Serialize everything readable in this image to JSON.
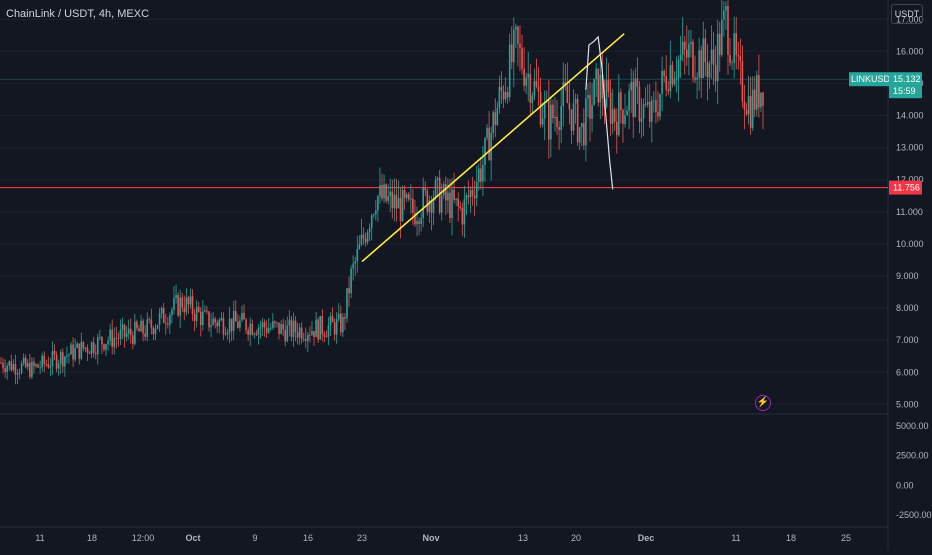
{
  "header": {
    "title": "ChainLink / USDT, 4h, MEXC",
    "currency": "USDT"
  },
  "chart_data": {
    "type": "candlestick",
    "title": "ChainLink / USDT, 4h, MEXC",
    "symbol": "LINKUSDT",
    "ylim": [
      4.7,
      17.6
    ],
    "y_ticks": [
      "17.000",
      "16.000",
      "15.000",
      "14.000",
      "13.000",
      "12.000",
      "11.000",
      "10.000",
      "9.000",
      "8.000",
      "7.000",
      "6.000",
      "5.000"
    ],
    "x_ticks": [
      "11",
      "18",
      "12:00",
      "Oct",
      "9",
      "16",
      "23",
      "Nov",
      "13",
      "20",
      "Dec",
      "11",
      "18",
      "25"
    ],
    "x_ticks_bold": [
      "Oct",
      "Nov",
      "Dec"
    ],
    "volume_pane": {
      "y_ticks": [
        "5000.00",
        "2500.00",
        "0.00",
        "-2500.00"
      ],
      "ylim": [
        -3500,
        6000
      ]
    },
    "price_anchors": [
      {
        "t": 0,
        "p": 6.3
      },
      {
        "t": 15,
        "p": 6.1
      },
      {
        "t": 30,
        "p": 6.5
      },
      {
        "t": 50,
        "p": 7.0
      },
      {
        "t": 70,
        "p": 7.3
      },
      {
        "t": 88,
        "p": 8.2
      },
      {
        "t": 100,
        "p": 7.6
      },
      {
        "t": 120,
        "p": 7.5
      },
      {
        "t": 140,
        "p": 7.3
      },
      {
        "t": 158,
        "p": 7.4
      },
      {
        "t": 166,
        "p": 7.5
      },
      {
        "t": 170,
        "p": 9.0
      },
      {
        "t": 176,
        "p": 10.2
      },
      {
        "t": 182,
        "p": 11.5
      },
      {
        "t": 200,
        "p": 11.0
      },
      {
        "t": 210,
        "p": 11.6
      },
      {
        "t": 224,
        "p": 11.0
      },
      {
        "t": 234,
        "p": 12.5
      },
      {
        "t": 242,
        "p": 14.5
      },
      {
        "t": 250,
        "p": 16.1
      },
      {
        "t": 258,
        "p": 15.0
      },
      {
        "t": 266,
        "p": 13.8
      },
      {
        "t": 274,
        "p": 14.5
      },
      {
        "t": 282,
        "p": 13.5
      },
      {
        "t": 290,
        "p": 15.0
      },
      {
        "t": 298,
        "p": 14.0
      },
      {
        "t": 306,
        "p": 14.6
      },
      {
        "t": 316,
        "p": 13.9
      },
      {
        "t": 324,
        "p": 15.5
      },
      {
        "t": 334,
        "p": 15.9
      },
      {
        "t": 346,
        "p": 15.6
      },
      {
        "t": 352,
        "p": 17.0
      },
      {
        "t": 358,
        "p": 15.2
      },
      {
        "t": 364,
        "p": 14.3
      },
      {
        "t": 370,
        "p": 15.0
      }
    ],
    "trendline": {
      "from": [
        23.0,
        9.45
      ],
      "to": [
        57.2,
        16.55
      ],
      "color": "#ffeb3b"
    },
    "horizontal_lines": [
      {
        "value": 11.756,
        "label": "11.756",
        "color": "#f23645"
      },
      {
        "value": 15.132,
        "label": "15.132",
        "color": "#26a69a"
      }
    ],
    "projection_path": [
      [
        52.2,
        14.8
      ],
      [
        52.6,
        16.2
      ],
      [
        53.2,
        16.3
      ],
      [
        53.8,
        16.45
      ],
      [
        54.3,
        15.5
      ],
      [
        54.8,
        14.0
      ],
      [
        55.3,
        12.6
      ],
      [
        55.7,
        11.7
      ]
    ],
    "price_tag": {
      "symbol": "LINKUSDT",
      "price": "15.132",
      "countdown": "15:59"
    },
    "up_color": "#26a69a",
    "down_color": "#ef5350"
  }
}
